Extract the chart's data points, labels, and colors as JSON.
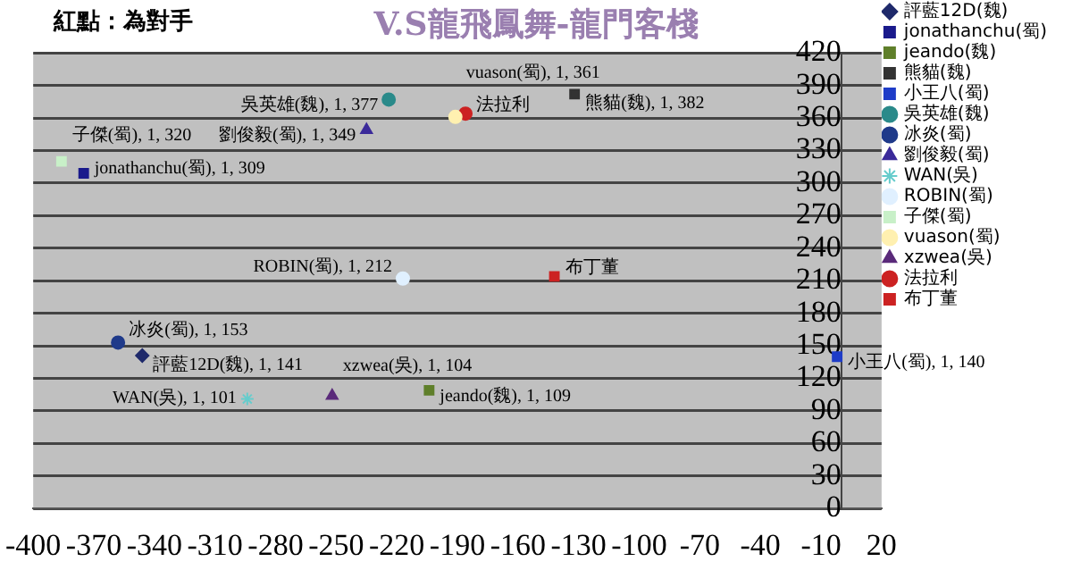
{
  "chart_data": {
    "type": "scatter",
    "title": "V.S龍飛鳳舞-龍門客棧",
    "annotations": [
      "紅點：為對手"
    ],
    "xlim": [
      -400,
      20
    ],
    "xticks": [
      -400,
      -370,
      -340,
      -310,
      -280,
      -250,
      -220,
      -190,
      -160,
      -130,
      -100,
      -70,
      -40,
      -10,
      20
    ],
    "ylim": [
      0,
      420
    ],
    "yticks": [
      0,
      30,
      60,
      90,
      120,
      150,
      180,
      210,
      240,
      270,
      300,
      330,
      360,
      390,
      420
    ],
    "grid": "y",
    "legend": "right",
    "series": [
      {
        "name": "評藍12D(魏)",
        "color": "#1f2a6b",
        "marker": "diamond",
        "x": [
          -346
        ],
        "values": [
          141
        ],
        "value_labels": [
          "評藍12D(魏), 1, 141"
        ]
      },
      {
        "name": "jonathanchu(蜀)",
        "color": "#1a1a8c",
        "marker": "square",
        "x": [
          -375
        ],
        "values": [
          309
        ],
        "value_labels": [
          "jonathanchu(蜀), 1, 309"
        ]
      },
      {
        "name": "jeando(魏)",
        "color": "#5f7f2a",
        "marker": "square",
        "x": [
          -204
        ],
        "values": [
          109
        ],
        "value_labels": [
          "jeando(魏), 1, 109"
        ]
      },
      {
        "name": "熊貓(魏)",
        "color": "#333333",
        "marker": "square",
        "x": [
          -132
        ],
        "values": [
          382
        ],
        "value_labels": [
          "熊貓(魏), 1, 382"
        ]
      },
      {
        "name": "小王八(蜀)",
        "color": "#1e3cc8",
        "marker": "square",
        "x": [
          -2
        ],
        "values": [
          140
        ],
        "value_labels": [
          "小王八(蜀), 1, 140"
        ]
      },
      {
        "name": "吳英雄(魏)",
        "color": "#2a8a8a",
        "marker": "circle",
        "x": [
          -224
        ],
        "values": [
          377
        ],
        "value_labels": [
          "吳英雄(魏), 1, 377"
        ]
      },
      {
        "name": "冰炎(蜀)",
        "color": "#1f3a8a",
        "marker": "circle",
        "x": [
          -358
        ],
        "values": [
          153
        ],
        "value_labels": [
          "冰炎(蜀), 1, 153"
        ]
      },
      {
        "name": "劉俊毅(蜀)",
        "color": "#3b2a9a",
        "marker": "triangle",
        "x": [
          -235
        ],
        "values": [
          349
        ],
        "value_labels": [
          "劉俊毅(蜀), 1, 349"
        ]
      },
      {
        "name": "WAN(吳)",
        "color": "#66cccc",
        "marker": "cross",
        "x": [
          -294
        ],
        "values": [
          101
        ],
        "value_labels": [
          "WAN(吳), 1, 101"
        ]
      },
      {
        "name": "ROBIN(蜀)",
        "color": "#e0f0ff",
        "marker": "circle",
        "x": [
          -217
        ],
        "values": [
          212
        ],
        "value_labels": [
          "ROBIN(蜀), 1, 212"
        ]
      },
      {
        "name": "子傑(蜀)",
        "color": "#c8f0c8",
        "marker": "square",
        "x": [
          -386
        ],
        "values": [
          320
        ],
        "value_labels": [
          "子傑(蜀), 1, 320"
        ]
      },
      {
        "name": "vuason(蜀)",
        "color": "#fff0b0",
        "marker": "circle",
        "x": [
          -191
        ],
        "values": [
          361
        ],
        "value_labels": [
          "vuason(蜀), 1, 361"
        ]
      },
      {
        "name": "xzwea(吳)",
        "color": "#5a2a7a",
        "marker": "triangle",
        "x": [
          -252
        ],
        "values": [
          104
        ],
        "value_labels": [
          "xzwea(吳), 1, 104"
        ]
      },
      {
        "name": "法拉利",
        "color": "#cc2222",
        "marker": "circle",
        "x": [
          -186
        ],
        "values": [
          364
        ],
        "value_labels": [
          "法拉利"
        ]
      },
      {
        "name": "布丁董",
        "color": "#cc2222",
        "marker": "square",
        "x": [
          -142
        ],
        "values": [
          214
        ],
        "value_labels": [
          "布丁董"
        ]
      }
    ]
  }
}
